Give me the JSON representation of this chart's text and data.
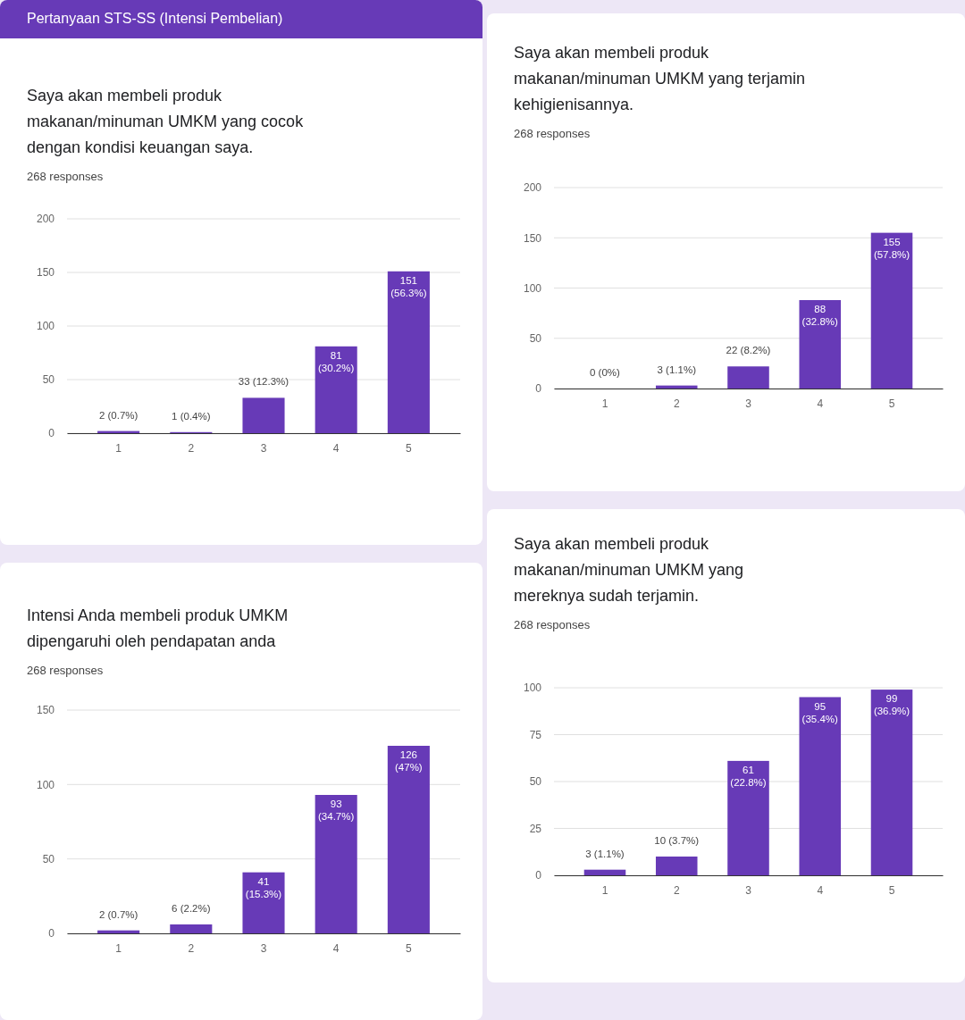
{
  "chart_data": [
    {
      "type": "bar",
      "title": "Saya akan membeli produk makanan/minuman UMKM yang cocok dengan kondisi keuangan saya.",
      "subtitle": "268 responses",
      "annotations": [
        "Pertanyaan STS-SS (Intensi Pembelian)"
      ],
      "categories": [
        "1",
        "2",
        "3",
        "4",
        "5"
      ],
      "values": [
        2,
        1,
        33,
        81,
        151
      ],
      "value_labels": [
        "2 (0.7%)",
        "1 (0.4%)",
        "33 (12.3%)",
        "81 (30.2%)",
        "151 (56.3%)"
      ],
      "color": "#673ab7",
      "ylim": [
        0,
        200
      ],
      "yticks": [
        0,
        50,
        100,
        150,
        200
      ],
      "grid": "y"
    },
    {
      "type": "bar",
      "title": "Saya akan membeli produk makanan/minuman UMKM yang terjamin kehigienisannya.",
      "subtitle": "268 responses",
      "categories": [
        "1",
        "2",
        "3",
        "4",
        "5"
      ],
      "values": [
        0,
        3,
        22,
        88,
        155
      ],
      "value_labels": [
        "0 (0%)",
        "3 (1.1%)",
        "22 (8.2%)",
        "88 (32.8%)",
        "155 (57.8%)"
      ],
      "color": "#673ab7",
      "ylim": [
        0,
        200
      ],
      "yticks": [
        0,
        50,
        100,
        150,
        200
      ],
      "grid": "y"
    },
    {
      "type": "bar",
      "title": "Intensi Anda membeli produk UMKM dipengaruhi oleh pendapatan anda",
      "subtitle": "268 responses",
      "categories": [
        "1",
        "2",
        "3",
        "4",
        "5"
      ],
      "values": [
        2,
        6,
        41,
        93,
        126
      ],
      "value_labels": [
        "2 (0.7%)",
        "6 (2.2%)",
        "41 (15.3%)",
        "93 (34.7%)",
        "126 (47%)"
      ],
      "color": "#673ab7",
      "ylim": [
        0,
        150
      ],
      "yticks": [
        0,
        50,
        100,
        150
      ],
      "grid": "y"
    },
    {
      "type": "bar",
      "title": "Saya akan membeli produk makanan/minuman UMKM yang mereknya sudah terjamin.",
      "subtitle": "268 responses",
      "categories": [
        "1",
        "2",
        "3",
        "4",
        "5"
      ],
      "values": [
        3,
        10,
        61,
        95,
        99
      ],
      "value_labels": [
        "3 (1.1%)",
        "10 (3.7%)",
        "61 (22.8%)",
        "95 (35.4%)",
        "99 (36.9%)"
      ],
      "color": "#673ab7",
      "ylim": [
        0,
        100
      ],
      "yticks": [
        0,
        25,
        50,
        75,
        100
      ],
      "grid": "y"
    }
  ]
}
